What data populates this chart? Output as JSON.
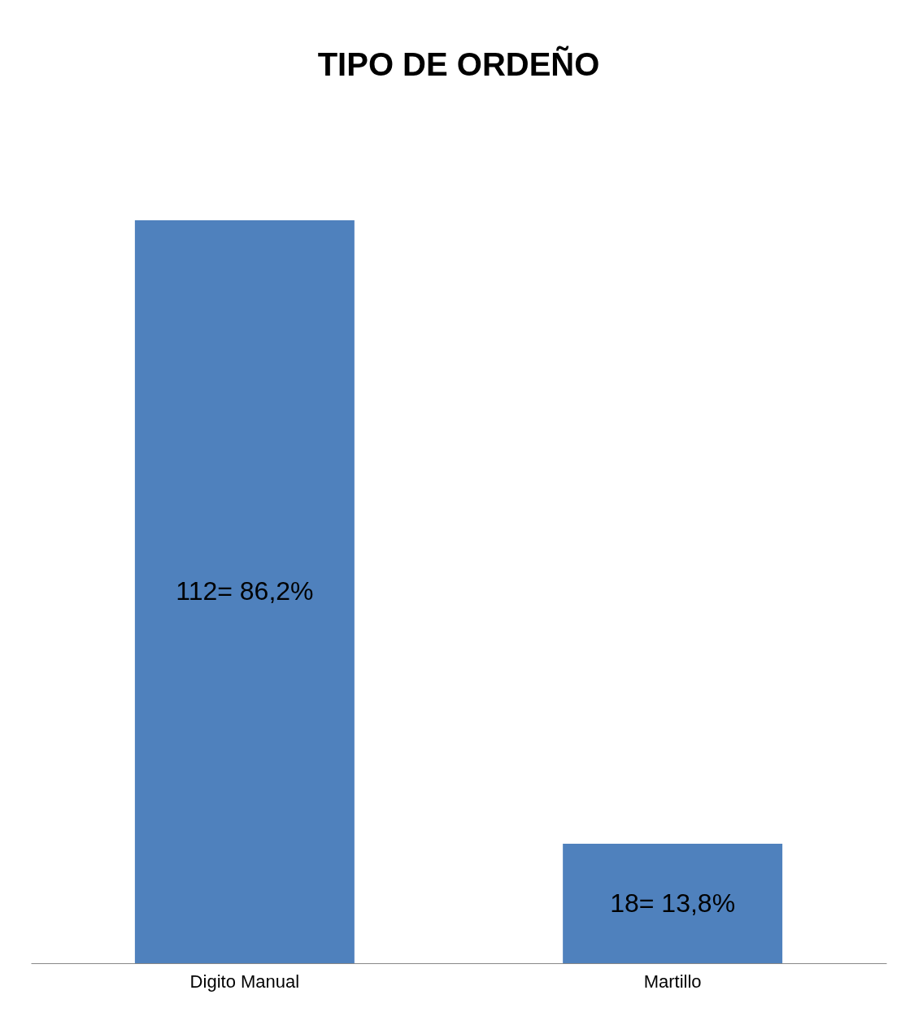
{
  "chart_data": {
    "type": "bar",
    "title": "TIPO DE ORDEÑO",
    "categories": [
      "Digito Manual",
      "Martillo"
    ],
    "values": [
      112,
      18
    ],
    "value_labels": [
      "112=   86,2%",
      "18=   13,8%"
    ],
    "color": "#4f81bd",
    "grid": false
  }
}
